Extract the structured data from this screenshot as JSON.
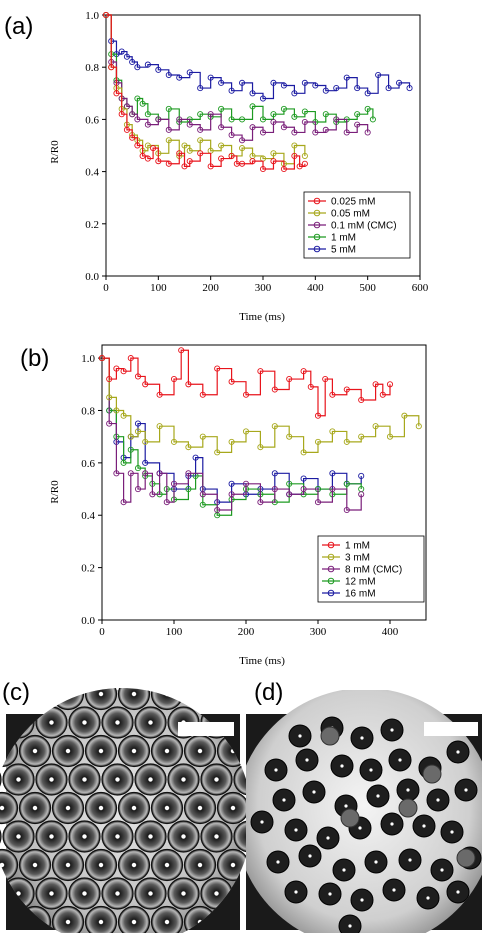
{
  "chart_data": [
    {
      "panel_label": "(a)",
      "type": "line",
      "xlabel": "Time (ms)",
      "ylabel": "R/R0",
      "xlim": [
        0,
        600
      ],
      "ylim": [
        0.0,
        1.0
      ],
      "x_ticks": [
        "0",
        "100",
        "200",
        "300",
        "400",
        "500",
        "600"
      ],
      "y_ticks": [
        "0.0",
        "0.2",
        "0.4",
        "0.6",
        "0.8",
        "1.0"
      ],
      "legend_position": "bottom-right",
      "series": [
        {
          "name": "0.025 mM",
          "color": "#e8141c",
          "x": [
            0,
            10,
            20,
            30,
            40,
            50,
            60,
            70,
            80,
            90,
            100,
            120,
            140,
            150,
            160,
            180,
            200,
            220,
            240,
            250,
            260,
            280,
            300,
            320,
            340,
            360,
            370,
            380
          ],
          "y": [
            1.0,
            0.8,
            0.7,
            0.62,
            0.56,
            0.53,
            0.5,
            0.46,
            0.45,
            0.49,
            0.44,
            0.43,
            0.47,
            0.42,
            0.44,
            0.47,
            0.42,
            0.45,
            0.46,
            0.43,
            0.43,
            0.44,
            0.41,
            0.44,
            0.41,
            0.46,
            0.42,
            0.43
          ]
        },
        {
          "name": "0.05 mM",
          "color": "#a7a81c",
          "x": [
            0,
            10,
            20,
            30,
            40,
            50,
            60,
            70,
            80,
            100,
            120,
            140,
            150,
            160,
            180,
            200,
            220,
            240,
            260,
            280,
            300,
            320,
            340,
            360,
            380
          ],
          "y": [
            1.0,
            0.8,
            0.72,
            0.64,
            0.58,
            0.54,
            0.52,
            0.48,
            0.5,
            0.47,
            0.52,
            0.46,
            0.5,
            0.48,
            0.52,
            0.48,
            0.5,
            0.46,
            0.49,
            0.46,
            0.45,
            0.47,
            0.43,
            0.5,
            0.46
          ]
        },
        {
          "name": "0.1 mM (CMC)",
          "color": "#7a1f7a",
          "x": [
            0,
            10,
            20,
            30,
            40,
            50,
            60,
            80,
            100,
            120,
            140,
            160,
            180,
            200,
            220,
            240,
            260,
            280,
            300,
            320,
            340,
            360,
            380,
            400,
            420,
            440,
            460,
            480,
            500
          ],
          "y": [
            1.0,
            0.82,
            0.74,
            0.68,
            0.65,
            0.62,
            0.6,
            0.58,
            0.6,
            0.56,
            0.6,
            0.58,
            0.56,
            0.62,
            0.57,
            0.54,
            0.52,
            0.57,
            0.55,
            0.59,
            0.57,
            0.55,
            0.59,
            0.55,
            0.56,
            0.6,
            0.55,
            0.58,
            0.55
          ]
        },
        {
          "name": "1 mM",
          "color": "#1e9b22",
          "x": [
            0,
            10,
            20,
            30,
            40,
            50,
            60,
            70,
            80,
            100,
            120,
            140,
            160,
            180,
            200,
            220,
            240,
            260,
            280,
            300,
            320,
            340,
            360,
            380,
            400,
            420,
            440,
            460,
            480,
            500,
            510
          ],
          "y": [
            1.0,
            0.85,
            0.75,
            0.68,
            0.65,
            0.62,
            0.68,
            0.66,
            0.62,
            0.6,
            0.64,
            0.59,
            0.6,
            0.62,
            0.61,
            0.64,
            0.6,
            0.6,
            0.65,
            0.6,
            0.62,
            0.64,
            0.61,
            0.63,
            0.59,
            0.62,
            0.59,
            0.6,
            0.62,
            0.64,
            0.6
          ]
        },
        {
          "name": "5 mM",
          "color": "#1c1ca2",
          "x": [
            0,
            10,
            20,
            30,
            40,
            50,
            60,
            80,
            100,
            120,
            140,
            160,
            180,
            200,
            220,
            240,
            260,
            280,
            300,
            320,
            340,
            360,
            380,
            400,
            420,
            440,
            460,
            480,
            500,
            520,
            540,
            560,
            580
          ],
          "y": [
            1.0,
            0.9,
            0.85,
            0.86,
            0.84,
            0.82,
            0.8,
            0.81,
            0.79,
            0.77,
            0.76,
            0.78,
            0.72,
            0.76,
            0.74,
            0.71,
            0.74,
            0.7,
            0.68,
            0.74,
            0.73,
            0.7,
            0.74,
            0.73,
            0.71,
            0.72,
            0.76,
            0.72,
            0.7,
            0.77,
            0.72,
            0.74,
            0.72
          ]
        }
      ]
    },
    {
      "panel_label": "(b)",
      "type": "line",
      "xlabel": "Time (ms)",
      "ylabel": "R/R0",
      "xlim": [
        0,
        450
      ],
      "ylim": [
        0.0,
        1.05
      ],
      "x_ticks": [
        "0",
        "100",
        "200",
        "300",
        "400"
      ],
      "y_ticks": [
        "0.0",
        "0.2",
        "0.4",
        "0.6",
        "0.8",
        "1.0"
      ],
      "legend_position": "bottom-right",
      "series": [
        {
          "name": "1 mM",
          "color": "#e8141c",
          "x": [
            0,
            10,
            20,
            30,
            40,
            50,
            60,
            80,
            100,
            110,
            120,
            140,
            160,
            180,
            200,
            220,
            240,
            260,
            280,
            290,
            300,
            310,
            320,
            340,
            360,
            380,
            390,
            400
          ],
          "y": [
            1.0,
            0.92,
            0.96,
            0.95,
            1.0,
            0.93,
            0.9,
            0.86,
            0.92,
            1.03,
            0.9,
            0.86,
            0.96,
            0.91,
            0.86,
            0.95,
            0.88,
            0.92,
            0.95,
            0.89,
            0.78,
            0.92,
            0.86,
            0.88,
            0.84,
            0.9,
            0.86,
            0.9
          ]
        },
        {
          "name": "3 mM",
          "color": "#a7a81c",
          "x": [
            0,
            10,
            20,
            30,
            40,
            50,
            60,
            80,
            100,
            120,
            140,
            160,
            180,
            200,
            220,
            240,
            260,
            280,
            300,
            320,
            340,
            360,
            380,
            400,
            420,
            440
          ],
          "y": [
            1.0,
            0.85,
            0.8,
            0.78,
            0.7,
            0.72,
            0.68,
            0.74,
            0.68,
            0.66,
            0.7,
            0.64,
            0.68,
            0.72,
            0.66,
            0.74,
            0.7,
            0.64,
            0.68,
            0.72,
            0.68,
            0.7,
            0.74,
            0.7,
            0.78,
            0.74
          ]
        },
        {
          "name": "8 mM (CMC)",
          "color": "#7a1f7a",
          "x": [
            0,
            10,
            20,
            30,
            40,
            50,
            60,
            70,
            80,
            90,
            100,
            120,
            140,
            160,
            180,
            200,
            220,
            240,
            260,
            280,
            300,
            320,
            340,
            360
          ],
          "y": [
            1.0,
            0.75,
            0.56,
            0.45,
            0.56,
            0.5,
            0.56,
            0.48,
            0.56,
            0.45,
            0.52,
            0.56,
            0.48,
            0.42,
            0.48,
            0.52,
            0.45,
            0.5,
            0.48,
            0.5,
            0.45,
            0.5,
            0.42,
            0.48
          ]
        },
        {
          "name": "12 mM",
          "color": "#1e9b22",
          "x": [
            0,
            10,
            20,
            30,
            40,
            50,
            60,
            70,
            80,
            90,
            100,
            120,
            130,
            140,
            160,
            180,
            200,
            220,
            240,
            260,
            280,
            300,
            320,
            340,
            360
          ],
          "y": [
            1.0,
            0.8,
            0.7,
            0.6,
            0.65,
            0.58,
            0.55,
            0.52,
            0.48,
            0.5,
            0.46,
            0.5,
            0.55,
            0.44,
            0.4,
            0.46,
            0.5,
            0.48,
            0.45,
            0.52,
            0.48,
            0.5,
            0.48,
            0.52,
            0.5
          ]
        },
        {
          "name": "16 mM",
          "color": "#1c1ca2",
          "x": [
            0,
            10,
            20,
            30,
            40,
            50,
            60,
            80,
            100,
            120,
            130,
            140,
            160,
            180,
            200,
            220,
            240,
            260,
            280,
            300,
            320,
            340,
            360
          ],
          "y": [
            1.0,
            0.8,
            0.68,
            0.62,
            0.7,
            0.75,
            0.6,
            0.56,
            0.5,
            0.55,
            0.62,
            0.5,
            0.45,
            0.52,
            0.48,
            0.5,
            0.56,
            0.48,
            0.54,
            0.5,
            0.56,
            0.52,
            0.55
          ]
        }
      ]
    }
  ],
  "images": [
    {
      "panel_label": "(c)"
    },
    {
      "panel_label": "(d)"
    }
  ]
}
